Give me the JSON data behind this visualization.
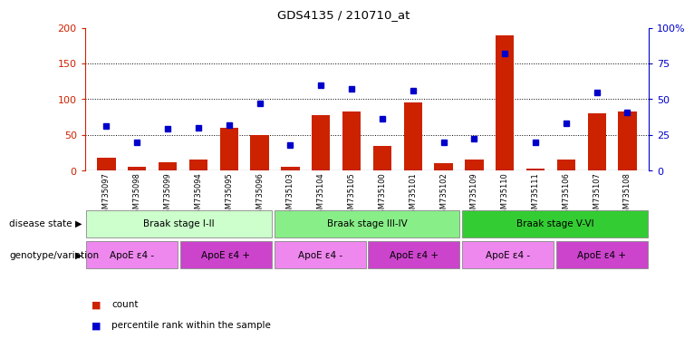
{
  "title": "GDS4135 / 210710_at",
  "samples": [
    "GSM735097",
    "GSM735098",
    "GSM735099",
    "GSM735094",
    "GSM735095",
    "GSM735096",
    "GSM735103",
    "GSM735104",
    "GSM735105",
    "GSM735100",
    "GSM735101",
    "GSM735102",
    "GSM735109",
    "GSM735110",
    "GSM735111",
    "GSM735106",
    "GSM735107",
    "GSM735108"
  ],
  "counts": [
    18,
    5,
    12,
    15,
    60,
    50,
    5,
    78,
    83,
    35,
    95,
    10,
    15,
    190,
    3,
    15,
    80,
    83
  ],
  "percentiles": [
    31,
    20,
    29,
    30,
    32,
    47,
    18,
    60,
    57,
    36,
    56,
    20,
    22,
    82,
    20,
    33,
    55,
    41
  ],
  "ylim_left": [
    0,
    200
  ],
  "ylim_right": [
    0,
    100
  ],
  "yticks_left": [
    0,
    50,
    100,
    150,
    200
  ],
  "yticks_right": [
    0,
    25,
    50,
    75,
    100
  ],
  "ytick_labels_right": [
    "0",
    "25",
    "50",
    "75",
    "100%"
  ],
  "bar_color": "#cc2200",
  "dot_color": "#0000cc",
  "bg_color": "#ffffff",
  "disease_state_groups": [
    {
      "label": "Braak stage I-II",
      "start": 0,
      "end": 6,
      "color": "#ccffcc"
    },
    {
      "label": "Braak stage III-IV",
      "start": 6,
      "end": 12,
      "color": "#88ee88"
    },
    {
      "label": "Braak stage V-VI",
      "start": 12,
      "end": 18,
      "color": "#33cc33"
    }
  ],
  "genotype_groups": [
    {
      "label": "ApoE ε4 -",
      "start": 0,
      "end": 3,
      "color": "#ee88ee"
    },
    {
      "label": "ApoE ε4 +",
      "start": 3,
      "end": 6,
      "color": "#cc44cc"
    },
    {
      "label": "ApoE ε4 -",
      "start": 6,
      "end": 9,
      "color": "#ee88ee"
    },
    {
      "label": "ApoE ε4 +",
      "start": 9,
      "end": 12,
      "color": "#cc44cc"
    },
    {
      "label": "ApoE ε4 -",
      "start": 12,
      "end": 15,
      "color": "#ee88ee"
    },
    {
      "label": "ApoE ε4 +",
      "start": 15,
      "end": 18,
      "color": "#cc44cc"
    }
  ],
  "legend_count_label": "count",
  "legend_pct_label": "percentile rank within the sample",
  "left_axis_color": "#cc2200",
  "right_axis_color": "#0000cc",
  "row_label_ds": "disease state",
  "row_label_gv": "genotype/variation"
}
